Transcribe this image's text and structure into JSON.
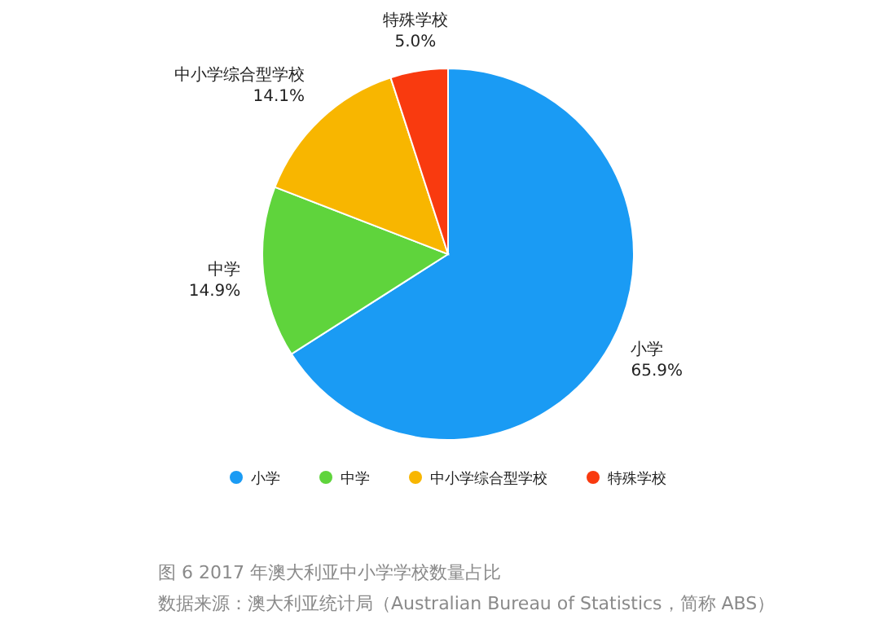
{
  "chart_data": {
    "type": "pie",
    "categories": [
      "小学",
      "中学",
      "中小学综合型学校",
      "特殊学校"
    ],
    "values": [
      65.9,
      14.9,
      14.1,
      5.0
    ],
    "colors": [
      "#1a9bf4",
      "#5fd43c",
      "#f8b600",
      "#f93a0f"
    ],
    "value_labels": [
      "65.9%",
      "14.9%",
      "14.1%",
      "5.0%"
    ],
    "legend": "bottom",
    "annotations": [
      "图 6 2017 年澳大利亚中小学学校数量占比",
      "数据来源：澳大利亚统计局（Australian Bureau of Statistics，简称 ABS）"
    ]
  }
}
